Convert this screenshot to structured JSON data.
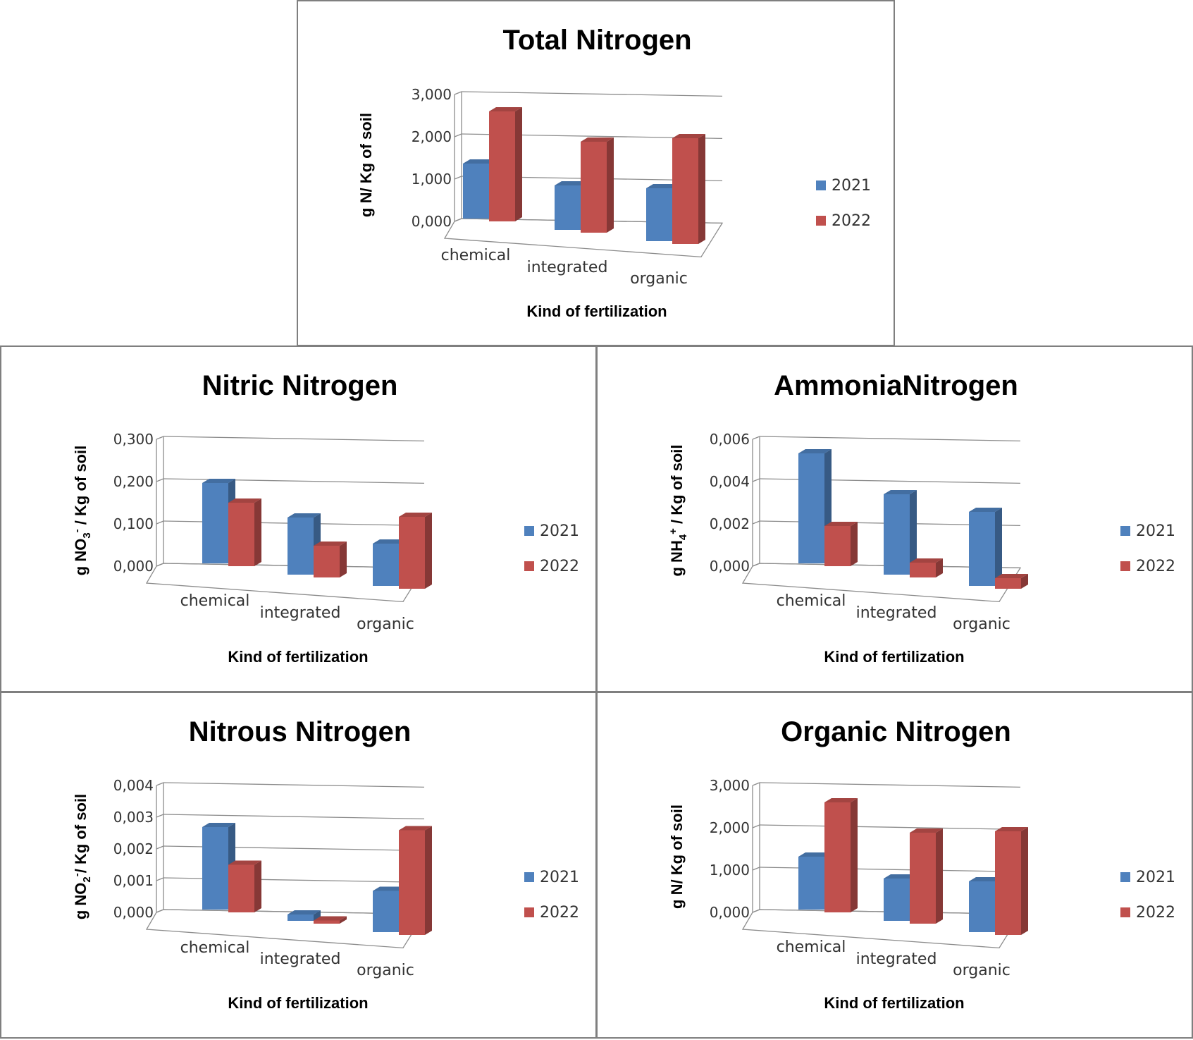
{
  "colors": {
    "2021": "#4f81bd",
    "2022": "#c0504d"
  },
  "chart_data": [
    {
      "type": "bar",
      "title": "Total Nitrogen",
      "ylabel": "g N/ Kg of soil",
      "xlabel": "Kind of fertilization",
      "categories": [
        "chemical",
        "integrated",
        "organic"
      ],
      "ylim": [
        0,
        3
      ],
      "yticks": [
        "0,000",
        "1,000",
        "2,000",
        "3,000"
      ],
      "series": [
        {
          "name": "2021",
          "values": [
            1.3,
            1.05,
            1.25
          ]
        },
        {
          "name": "2022",
          "values": [
            2.6,
            2.15,
            2.5
          ]
        }
      ],
      "legend_position": "right"
    },
    {
      "type": "bar",
      "title": "Nitric Nitrogen",
      "ylabel": "g NO3- / Kg of soil",
      "xlabel": "Kind of fertilization",
      "categories": [
        "chemical",
        "integrated",
        "organic"
      ],
      "ylim": [
        0,
        0.3
      ],
      "yticks": [
        "0,000",
        "0,100",
        "0,200",
        "0,300"
      ],
      "series": [
        {
          "name": "2021",
          "values": [
            0.19,
            0.135,
            0.1
          ]
        },
        {
          "name": "2022",
          "values": [
            0.15,
            0.075,
            0.17
          ]
        }
      ],
      "legend_position": "right"
    },
    {
      "type": "bar",
      "title": "AmmoniaNitrogen",
      "ylabel": "g NH4+ / Kg of soil",
      "xlabel": "Kind of fertilization",
      "categories": [
        "chemical",
        "integrated",
        "organic"
      ],
      "ylim": [
        0,
        0.006
      ],
      "yticks": [
        "0,000",
        "0,002",
        "0,004",
        "0,006"
      ],
      "series": [
        {
          "name": "2021",
          "values": [
            0.0052,
            0.0038,
            0.0035
          ]
        },
        {
          "name": "2022",
          "values": [
            0.0019,
            0.0007,
            0.0005
          ]
        }
      ],
      "legend_position": "right"
    },
    {
      "type": "bar",
      "title": "Nitrous Nitrogen",
      "ylabel": "g NO2-/ Kg of soil",
      "xlabel": "Kind of fertilization",
      "categories": [
        "chemical",
        "integrated",
        "organic"
      ],
      "ylim": [
        0,
        0.004
      ],
      "yticks": [
        "0,000",
        "0,001",
        "0,002",
        "0,003",
        "0,004"
      ],
      "series": [
        {
          "name": "2021",
          "values": [
            0.0026,
            0.0002,
            0.0013
          ]
        },
        {
          "name": "2022",
          "values": [
            0.0015,
            0.0001,
            0.0033
          ]
        }
      ],
      "legend_position": "right"
    },
    {
      "type": "bar",
      "title": "Organic Nitrogen",
      "ylabel": "g N/ Kg of soil",
      "xlabel": "Kind of fertilization",
      "categories": [
        "chemical",
        "integrated",
        "organic"
      ],
      "ylim": [
        0,
        3
      ],
      "yticks": [
        "0,000",
        "1,000",
        "2,000",
        "3,000"
      ],
      "series": [
        {
          "name": "2021",
          "values": [
            1.25,
            1.0,
            1.2
          ]
        },
        {
          "name": "2022",
          "values": [
            2.6,
            2.15,
            2.45
          ]
        }
      ],
      "legend_position": "right"
    }
  ]
}
